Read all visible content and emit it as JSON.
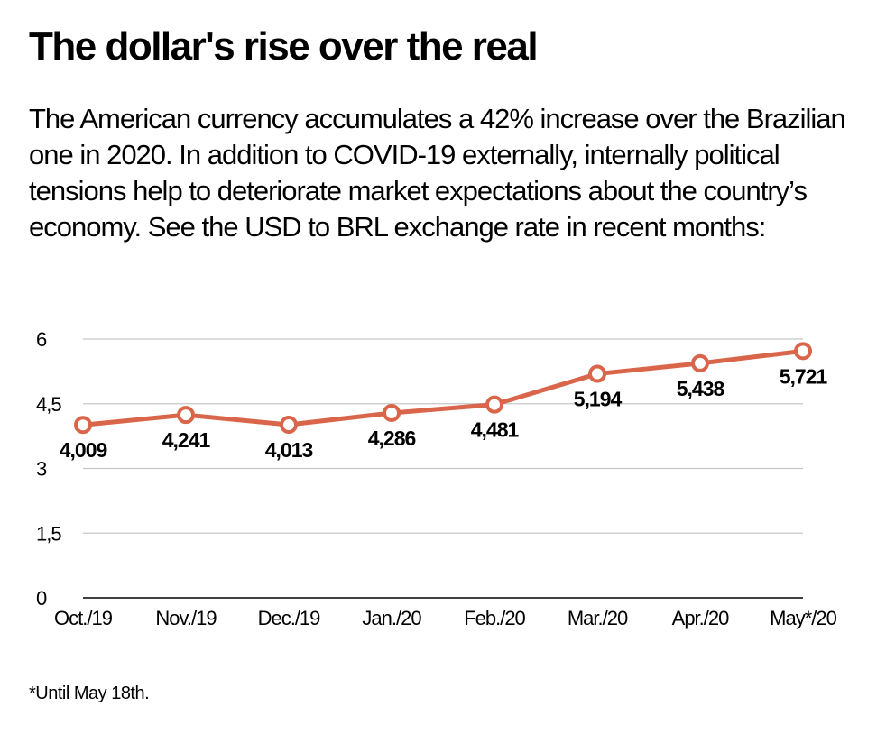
{
  "header": {
    "title": "The dollar's rise over the real",
    "subtitle": "The American currency accumulates a 42% increase over the Brazilian one in 2020. In addition to COVID-19 externally, internally political tensions help to deteriorate market expectations about the country’s economy. See the USD to BRL exchange rate in recent months:"
  },
  "footnote": "*Until May 18th.",
  "colors": {
    "line": "#d9664a",
    "grid": "#c8c8c8",
    "axis": "#000000",
    "marker_fill": "#ffffff"
  },
  "chart_data": {
    "type": "line",
    "categories": [
      "Oct./19",
      "Nov./19",
      "Dec./19",
      "Jan./20",
      "Feb./20",
      "Mar./20",
      "Apr./20",
      "May*/20"
    ],
    "series": [
      {
        "values": [
          4.009,
          4.241,
          4.013,
          4.286,
          4.481,
          5.194,
          5.438,
          5.721
        ]
      }
    ],
    "data_labels": [
      "4,009",
      "4,241",
      "4,013",
      "4,286",
      "4,481",
      "5,194",
      "5,438",
      "5,721"
    ],
    "y_ticks": [
      0,
      1.5,
      3,
      4.5,
      6
    ],
    "y_tick_labels": [
      "0",
      "1,5",
      "3",
      "4,5",
      "6"
    ],
    "ylim": [
      0,
      6
    ],
    "grid": true,
    "xlabel": "",
    "ylabel": ""
  }
}
